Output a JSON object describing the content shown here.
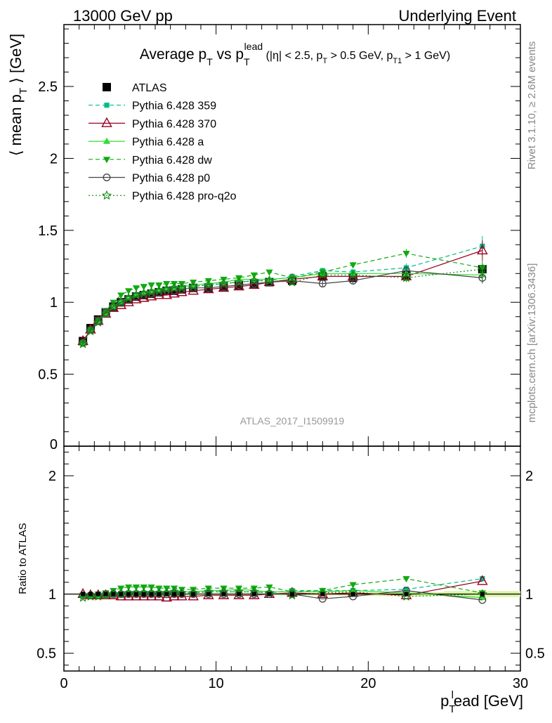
{
  "header": {
    "left": "13000 GeV pp",
    "right": "Underlying Event"
  },
  "side_labels": {
    "rivet": "Rivet 3.1.10, ≥ 2.6M events",
    "mcplots": "mcplots.cern.ch [arXiv:1306.3436]"
  },
  "watermark": "ATLAS_2017_I1509919",
  "chart_data": [
    {
      "type": "scatter",
      "title": {
        "main": "Average p",
        "main_sub": "T",
        "vs": " vs p",
        "vs_sub": "T",
        "vs_sup": "lead",
        "cut_a": " (|η| < 2.5, p",
        "cut_a_sub": "T",
        "cut_b": " > 0.5 GeV, p",
        "cut_b_sub": "T1",
        "cut_c": " > 1 GeV)"
      },
      "ylabel": {
        "pre": "⟨ mean p",
        "sub": "T",
        "post": " ⟩ [GeV]"
      },
      "xlim": [
        0,
        30
      ],
      "ylim": [
        0,
        2.93
      ],
      "y_ticks": [
        0.5,
        1,
        1.5,
        2,
        2.5
      ],
      "y_tick_labels": [
        "0.5",
        "1",
        "1.5",
        "2",
        "2.5"
      ],
      "y_bottom_label": "0",
      "legend_position": "top-left",
      "series": [
        {
          "name": "ATLAS",
          "color": "#000000",
          "marker": "square",
          "line": "none",
          "x": [
            1.25,
            1.75,
            2.25,
            2.75,
            3.25,
            3.75,
            4.25,
            4.75,
            5.25,
            5.75,
            6.25,
            6.75,
            7.25,
            7.75,
            8.5,
            9.5,
            10.5,
            11.5,
            12.5,
            13.5,
            15,
            17,
            19,
            22.5,
            27.5
          ],
          "y": [
            0.73,
            0.82,
            0.88,
            0.93,
            0.97,
            1.0,
            1.02,
            1.04,
            1.05,
            1.06,
            1.07,
            1.08,
            1.08,
            1.09,
            1.1,
            1.1,
            1.11,
            1.12,
            1.13,
            1.14,
            1.15,
            1.18,
            1.17,
            1.19,
            1.23
          ],
          "yerr": [
            0.01,
            0.01,
            0.01,
            0.01,
            0.01,
            0.01,
            0.01,
            0.01,
            0.01,
            0.01,
            0.01,
            0.01,
            0.01,
            0.01,
            0.01,
            0.01,
            0.01,
            0.01,
            0.01,
            0.01,
            0.01,
            0.01,
            0.02,
            0.02,
            0.02
          ]
        },
        {
          "name": "Pythia 6.428 359",
          "color": "#00bb88",
          "marker": "small-square",
          "line": "dashed",
          "x": [
            1.25,
            1.75,
            2.25,
            2.75,
            3.25,
            3.75,
            4.25,
            4.75,
            5.25,
            5.75,
            6.25,
            6.75,
            7.25,
            7.75,
            8.5,
            9.5,
            10.5,
            11.5,
            12.5,
            13.5,
            15,
            17,
            19,
            22.5,
            27.5
          ],
          "y": [
            0.72,
            0.81,
            0.87,
            0.93,
            0.97,
            1.0,
            1.03,
            1.05,
            1.06,
            1.07,
            1.08,
            1.09,
            1.1,
            1.1,
            1.11,
            1.12,
            1.13,
            1.14,
            1.15,
            1.15,
            1.18,
            1.22,
            1.21,
            1.24,
            1.39
          ],
          "yerr": [
            0.005,
            0.005,
            0.005,
            0.005,
            0.005,
            0.005,
            0.005,
            0.005,
            0.005,
            0.005,
            0.005,
            0.005,
            0.005,
            0.005,
            0.005,
            0.005,
            0.005,
            0.005,
            0.005,
            0.01,
            0.01,
            0.02,
            0.02,
            0.03,
            0.07
          ]
        },
        {
          "name": "Pythia 6.428 370",
          "color": "#990022",
          "marker": "open-triangle",
          "line": "solid",
          "x": [
            1.25,
            1.75,
            2.25,
            2.75,
            3.25,
            3.75,
            4.25,
            4.75,
            5.25,
            5.75,
            6.25,
            6.75,
            7.25,
            7.75,
            8.5,
            9.5,
            10.5,
            11.5,
            12.5,
            13.5,
            15,
            17,
            19,
            22.5,
            27.5
          ],
          "y": [
            0.73,
            0.81,
            0.87,
            0.92,
            0.96,
            0.98,
            1.0,
            1.02,
            1.03,
            1.04,
            1.05,
            1.05,
            1.06,
            1.07,
            1.08,
            1.09,
            1.1,
            1.11,
            1.12,
            1.14,
            1.16,
            1.18,
            1.18,
            1.18,
            1.36
          ],
          "yerr": [
            0.005,
            0.005,
            0.005,
            0.005,
            0.005,
            0.005,
            0.005,
            0.005,
            0.005,
            0.005,
            0.005,
            0.005,
            0.005,
            0.005,
            0.005,
            0.005,
            0.005,
            0.005,
            0.005,
            0.01,
            0.01,
            0.02,
            0.02,
            0.03,
            0.07
          ]
        },
        {
          "name": "Pythia 6.428 a",
          "color": "#33dd33",
          "marker": "triangle",
          "line": "solid",
          "x": [
            1.25,
            1.75,
            2.25,
            2.75,
            3.25,
            3.75,
            4.25,
            4.75,
            5.25,
            5.75,
            6.25,
            6.75,
            7.25,
            7.75,
            8.5,
            9.5,
            10.5,
            11.5,
            12.5,
            13.5,
            15,
            17,
            19,
            22.5,
            27.5
          ],
          "y": [
            0.72,
            0.81,
            0.87,
            0.92,
            0.97,
            1.01,
            1.03,
            1.05,
            1.07,
            1.08,
            1.09,
            1.1,
            1.1,
            1.11,
            1.12,
            1.13,
            1.14,
            1.16,
            1.16,
            1.16,
            1.17,
            1.2,
            1.2,
            1.2,
            1.19
          ],
          "yerr": [
            0.005,
            0.005,
            0.005,
            0.005,
            0.005,
            0.005,
            0.005,
            0.005,
            0.005,
            0.005,
            0.005,
            0.005,
            0.005,
            0.005,
            0.005,
            0.005,
            0.005,
            0.005,
            0.005,
            0.01,
            0.01,
            0.02,
            0.02,
            0.03,
            0.05
          ]
        },
        {
          "name": "Pythia 6.428 dw",
          "color": "#11aa11",
          "marker": "inverted-triangle",
          "line": "dashed",
          "x": [
            1.25,
            1.75,
            2.25,
            2.75,
            3.25,
            3.75,
            4.25,
            4.75,
            5.25,
            5.75,
            6.25,
            6.75,
            7.25,
            7.75,
            8.5,
            9.5,
            10.5,
            11.5,
            12.5,
            13.5,
            15,
            17,
            19,
            22.5,
            27.5
          ],
          "y": [
            0.72,
            0.81,
            0.88,
            0.94,
            1.0,
            1.05,
            1.08,
            1.1,
            1.11,
            1.12,
            1.12,
            1.13,
            1.13,
            1.13,
            1.14,
            1.15,
            1.16,
            1.17,
            1.19,
            1.21,
            1.17,
            1.21,
            1.26,
            1.34,
            1.24
          ],
          "yerr": [
            0.005,
            0.005,
            0.005,
            0.005,
            0.005,
            0.005,
            0.005,
            0.005,
            0.005,
            0.005,
            0.005,
            0.005,
            0.005,
            0.005,
            0.005,
            0.005,
            0.005,
            0.005,
            0.005,
            0.01,
            0.01,
            0.02,
            0.02,
            0.03,
            0.05
          ]
        },
        {
          "name": "Pythia 6.428 p0",
          "color": "#444444",
          "marker": "open-circle",
          "line": "solid",
          "x": [
            1.25,
            1.75,
            2.25,
            2.75,
            3.25,
            3.75,
            4.25,
            4.75,
            5.25,
            5.75,
            6.25,
            6.75,
            7.25,
            7.75,
            8.5,
            9.5,
            10.5,
            11.5,
            12.5,
            13.5,
            15,
            17,
            19,
            22.5,
            27.5
          ],
          "y": [
            0.72,
            0.81,
            0.87,
            0.93,
            0.97,
            1.0,
            1.02,
            1.04,
            1.05,
            1.06,
            1.07,
            1.08,
            1.08,
            1.09,
            1.1,
            1.1,
            1.11,
            1.12,
            1.13,
            1.14,
            1.15,
            1.13,
            1.15,
            1.22,
            1.17
          ],
          "yerr": [
            0.005,
            0.005,
            0.005,
            0.005,
            0.005,
            0.005,
            0.005,
            0.005,
            0.005,
            0.005,
            0.005,
            0.005,
            0.005,
            0.005,
            0.005,
            0.005,
            0.005,
            0.005,
            0.005,
            0.01,
            0.01,
            0.02,
            0.02,
            0.03,
            0.04
          ]
        },
        {
          "name": "Pythia 6.428 pro-q2o",
          "color": "#118811",
          "marker": "open-star",
          "line": "dotted",
          "x": [
            1.25,
            1.75,
            2.25,
            2.75,
            3.25,
            3.75,
            4.25,
            4.75,
            5.25,
            5.75,
            6.25,
            6.75,
            7.25,
            7.75,
            8.5,
            9.5,
            10.5,
            11.5,
            12.5,
            13.5,
            15,
            17,
            19,
            22.5,
            27.5
          ],
          "y": [
            0.71,
            0.8,
            0.86,
            0.92,
            0.97,
            1.0,
            1.03,
            1.05,
            1.06,
            1.07,
            1.08,
            1.09,
            1.1,
            1.1,
            1.11,
            1.12,
            1.13,
            1.14,
            1.15,
            1.15,
            1.14,
            1.19,
            1.19,
            1.17,
            1.23
          ],
          "yerr": [
            0.005,
            0.005,
            0.005,
            0.005,
            0.005,
            0.005,
            0.005,
            0.005,
            0.005,
            0.005,
            0.005,
            0.005,
            0.005,
            0.005,
            0.005,
            0.005,
            0.005,
            0.005,
            0.005,
            0.01,
            0.01,
            0.02,
            0.02,
            0.03,
            0.04
          ]
        }
      ]
    },
    {
      "type": "scatter",
      "ylabel": "Ratio to ATLAS",
      "xlabel": {
        "pre": "p",
        "sub": "T",
        "sup": "l",
        "post": "ead [GeV]"
      },
      "xlim": [
        0,
        30
      ],
      "ylim": [
        0.35,
        2.25
      ],
      "x_ticks": [
        0,
        10,
        20,
        30
      ],
      "x_tick_labels": [
        "0",
        "10",
        "20",
        "30"
      ],
      "y_ticks": [
        0.5,
        1,
        2
      ],
      "y_tick_labels": [
        "0.5",
        "1",
        "2"
      ],
      "reference_band": {
        "color": "#ddf3a8",
        "x": [
          1.25,
          1.75,
          2.25,
          2.75,
          3.25,
          3.75,
          4.25,
          4.75,
          5.25,
          5.75,
          6.25,
          6.75,
          7.25,
          7.75,
          8.5,
          9.5,
          10.5,
          11.5,
          12.5,
          13.5,
          15,
          17,
          19,
          22.5,
          27.5
        ],
        "half_width": [
          0.01,
          0.01,
          0.01,
          0.01,
          0.01,
          0.01,
          0.01,
          0.01,
          0.01,
          0.01,
          0.01,
          0.01,
          0.01,
          0.01,
          0.01,
          0.01,
          0.01,
          0.01,
          0.01,
          0.01,
          0.01,
          0.012,
          0.015,
          0.018,
          0.025
        ]
      },
      "series": [
        {
          "name": "Pythia 6.428 359",
          "x": [
            1.25,
            1.75,
            2.25,
            2.75,
            3.25,
            3.75,
            4.25,
            4.75,
            5.25,
            5.75,
            6.25,
            6.75,
            7.25,
            7.75,
            8.5,
            9.5,
            10.5,
            11.5,
            12.5,
            13.5,
            15,
            17,
            19,
            22.5,
            27.5
          ],
          "y": [
            0.99,
            0.99,
            0.99,
            1.0,
            1.0,
            1.0,
            1.01,
            1.01,
            1.01,
            1.01,
            1.01,
            1.01,
            1.02,
            1.01,
            1.01,
            1.02,
            1.02,
            1.02,
            1.02,
            1.01,
            1.03,
            1.03,
            1.03,
            1.04,
            1.13
          ]
        },
        {
          "name": "Pythia 6.428 370",
          "x": [
            1.25,
            1.75,
            2.25,
            2.75,
            3.25,
            3.75,
            4.25,
            4.75,
            5.25,
            5.75,
            6.25,
            6.75,
            7.25,
            7.75,
            8.5,
            9.5,
            10.5,
            11.5,
            12.5,
            13.5,
            15,
            17,
            19,
            22.5,
            27.5
          ],
          "y": [
            1.0,
            0.99,
            0.99,
            0.99,
            0.99,
            0.98,
            0.98,
            0.98,
            0.98,
            0.98,
            0.98,
            0.97,
            0.98,
            0.98,
            0.98,
            0.99,
            0.99,
            0.99,
            0.99,
            1.0,
            1.01,
            1.0,
            1.01,
            0.99,
            1.11
          ]
        },
        {
          "name": "Pythia 6.428 a",
          "x": [
            1.25,
            1.75,
            2.25,
            2.75,
            3.25,
            3.75,
            4.25,
            4.75,
            5.25,
            5.75,
            6.25,
            6.75,
            7.25,
            7.75,
            8.5,
            9.5,
            10.5,
            11.5,
            12.5,
            13.5,
            15,
            17,
            19,
            22.5,
            27.5
          ],
          "y": [
            0.99,
            0.99,
            0.99,
            0.99,
            1.0,
            1.01,
            1.01,
            1.01,
            1.02,
            1.02,
            1.02,
            1.02,
            1.02,
            1.02,
            1.02,
            1.03,
            1.03,
            1.04,
            1.03,
            1.02,
            1.02,
            1.02,
            1.03,
            1.01,
            0.97
          ]
        },
        {
          "name": "Pythia 6.428 dw",
          "x": [
            1.25,
            1.75,
            2.25,
            2.75,
            3.25,
            3.75,
            4.25,
            4.75,
            5.25,
            5.75,
            6.25,
            6.75,
            7.25,
            7.75,
            8.5,
            9.5,
            10.5,
            11.5,
            12.5,
            13.5,
            15,
            17,
            19,
            22.5,
            27.5
          ],
          "y": [
            0.99,
            0.99,
            1.0,
            1.01,
            1.03,
            1.05,
            1.06,
            1.06,
            1.06,
            1.06,
            1.05,
            1.05,
            1.05,
            1.04,
            1.04,
            1.05,
            1.05,
            1.05,
            1.05,
            1.06,
            1.02,
            1.03,
            1.08,
            1.13,
            1.01
          ]
        },
        {
          "name": "Pythia 6.428 p0",
          "x": [
            1.25,
            1.75,
            2.25,
            2.75,
            3.25,
            3.75,
            4.25,
            4.75,
            5.25,
            5.75,
            6.25,
            6.75,
            7.25,
            7.75,
            8.5,
            9.5,
            10.5,
            11.5,
            12.5,
            13.5,
            15,
            17,
            19,
            22.5,
            27.5
          ],
          "y": [
            0.99,
            0.99,
            0.99,
            1.0,
            1.0,
            1.0,
            1.0,
            1.0,
            1.0,
            1.0,
            1.0,
            1.0,
            1.0,
            1.0,
            1.0,
            1.0,
            1.0,
            1.0,
            1.0,
            1.0,
            1.0,
            0.96,
            0.98,
            1.03,
            0.95
          ]
        },
        {
          "name": "Pythia 6.428 pro-q2o",
          "x": [
            1.25,
            1.75,
            2.25,
            2.75,
            3.25,
            3.75,
            4.25,
            4.75,
            5.25,
            5.75,
            6.25,
            6.75,
            7.25,
            7.75,
            8.5,
            9.5,
            10.5,
            11.5,
            12.5,
            13.5,
            15,
            17,
            19,
            22.5,
            27.5
          ],
          "y": [
            0.97,
            0.98,
            0.98,
            0.99,
            1.0,
            1.0,
            1.01,
            1.01,
            1.01,
            1.01,
            1.01,
            1.01,
            1.02,
            1.01,
            1.01,
            1.02,
            1.02,
            1.02,
            1.02,
            1.01,
            0.99,
            1.01,
            1.02,
            0.98,
            1.0
          ]
        }
      ]
    }
  ]
}
